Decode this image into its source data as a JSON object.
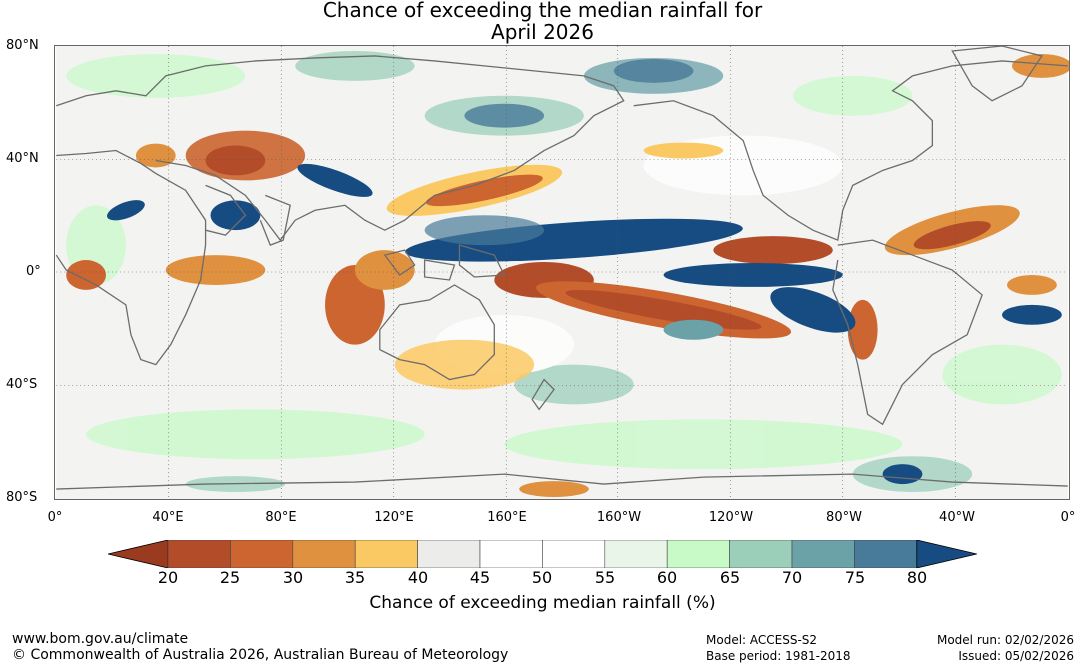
{
  "title_line1": "Chance of exceeding the median rainfall for",
  "title_line2": "April 2026",
  "lat_labels": [
    "80°N",
    "40°N",
    "0°",
    "40°S",
    "80°S"
  ],
  "lon_labels": [
    "0°",
    "40°E",
    "80°E",
    "120°E",
    "160°E",
    "160°W",
    "120°W",
    "80°W",
    "40°W",
    "0°"
  ],
  "colorbar": {
    "title": "Chance of exceeding median rainfall (%)",
    "ticks": [
      "20",
      "25",
      "30",
      "35",
      "40",
      "45",
      "50",
      "55",
      "60",
      "65",
      "70",
      "75",
      "80"
    ],
    "colors": [
      "#9a3b20",
      "#b34c28",
      "#cc6530",
      "#e0913f",
      "#fbc964",
      "#ececea",
      "#ffffff",
      "#ffffff",
      "#eaf5e9",
      "#c8fac8",
      "#9ccfba",
      "#6aa2a8",
      "#487a99",
      "#174c82"
    ]
  },
  "footer": {
    "website": "www.bom.gov.au/climate",
    "copyright": "© Commonwealth of Australia 2026, Australian Bureau of Meteorology",
    "model": "Model: ACCESS-S2",
    "base_period": "Base period: 1981-2018",
    "model_run": "Model run: 02/02/2026",
    "issued": "Issued: 05/02/2026"
  }
}
